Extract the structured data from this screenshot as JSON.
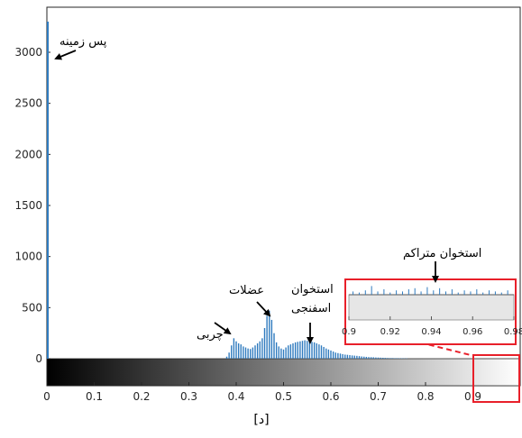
{
  "chart_data": {
    "type": "bar",
    "caption": "[د]",
    "xlim": [
      0,
      1
    ],
    "ylim": [
      -300,
      3300
    ],
    "x_ticks": [
      "0",
      "0.1",
      "0.2",
      "0.3",
      "0.4",
      "0.5",
      "0.6",
      "0.7",
      "0.8",
      "0.9"
    ],
    "y_ticks": [
      "0",
      "500",
      "1000",
      "1500",
      "2000",
      "2500",
      "3000"
    ],
    "bar_color": "#2f7bbf",
    "background_bin": {
      "x": 0.0,
      "y": 3300
    },
    "histogram": [
      {
        "x": 0.38,
        "y": 20
      },
      {
        "x": 0.385,
        "y": 60
      },
      {
        "x": 0.39,
        "y": 130
      },
      {
        "x": 0.395,
        "y": 200
      },
      {
        "x": 0.4,
        "y": 170
      },
      {
        "x": 0.405,
        "y": 150
      },
      {
        "x": 0.41,
        "y": 140
      },
      {
        "x": 0.415,
        "y": 120
      },
      {
        "x": 0.42,
        "y": 110
      },
      {
        "x": 0.425,
        "y": 100
      },
      {
        "x": 0.43,
        "y": 95
      },
      {
        "x": 0.435,
        "y": 110
      },
      {
        "x": 0.44,
        "y": 130
      },
      {
        "x": 0.445,
        "y": 150
      },
      {
        "x": 0.45,
        "y": 170
      },
      {
        "x": 0.455,
        "y": 200
      },
      {
        "x": 0.46,
        "y": 300
      },
      {
        "x": 0.465,
        "y": 420
      },
      {
        "x": 0.47,
        "y": 470
      },
      {
        "x": 0.475,
        "y": 380
      },
      {
        "x": 0.48,
        "y": 250
      },
      {
        "x": 0.485,
        "y": 160
      },
      {
        "x": 0.49,
        "y": 120
      },
      {
        "x": 0.495,
        "y": 100
      },
      {
        "x": 0.5,
        "y": 90
      },
      {
        "x": 0.505,
        "y": 110
      },
      {
        "x": 0.51,
        "y": 130
      },
      {
        "x": 0.515,
        "y": 140
      },
      {
        "x": 0.52,
        "y": 150
      },
      {
        "x": 0.525,
        "y": 160
      },
      {
        "x": 0.53,
        "y": 165
      },
      {
        "x": 0.535,
        "y": 170
      },
      {
        "x": 0.54,
        "y": 175
      },
      {
        "x": 0.545,
        "y": 180
      },
      {
        "x": 0.55,
        "y": 175
      },
      {
        "x": 0.555,
        "y": 170
      },
      {
        "x": 0.56,
        "y": 165
      },
      {
        "x": 0.565,
        "y": 160
      },
      {
        "x": 0.57,
        "y": 150
      },
      {
        "x": 0.575,
        "y": 140
      },
      {
        "x": 0.58,
        "y": 130
      },
      {
        "x": 0.585,
        "y": 115
      },
      {
        "x": 0.59,
        "y": 100
      },
      {
        "x": 0.595,
        "y": 90
      },
      {
        "x": 0.6,
        "y": 80
      },
      {
        "x": 0.605,
        "y": 70
      },
      {
        "x": 0.61,
        "y": 60
      },
      {
        "x": 0.615,
        "y": 55
      },
      {
        "x": 0.62,
        "y": 50
      },
      {
        "x": 0.625,
        "y": 45
      },
      {
        "x": 0.63,
        "y": 40
      },
      {
        "x": 0.635,
        "y": 38
      },
      {
        "x": 0.64,
        "y": 35
      },
      {
        "x": 0.645,
        "y": 32
      },
      {
        "x": 0.65,
        "y": 30
      },
      {
        "x": 0.655,
        "y": 28
      },
      {
        "x": 0.66,
        "y": 25
      },
      {
        "x": 0.665,
        "y": 22
      },
      {
        "x": 0.67,
        "y": 20
      },
      {
        "x": 0.675,
        "y": 18
      },
      {
        "x": 0.68,
        "y": 16
      },
      {
        "x": 0.685,
        "y": 15
      },
      {
        "x": 0.69,
        "y": 14
      },
      {
        "x": 0.695,
        "y": 12
      },
      {
        "x": 0.7,
        "y": 11
      },
      {
        "x": 0.705,
        "y": 10
      },
      {
        "x": 0.71,
        "y": 9
      },
      {
        "x": 0.715,
        "y": 8
      },
      {
        "x": 0.72,
        "y": 7
      },
      {
        "x": 0.725,
        "y": 6
      },
      {
        "x": 0.73,
        "y": 6
      },
      {
        "x": 0.735,
        "y": 5
      },
      {
        "x": 0.74,
        "y": 5
      },
      {
        "x": 0.745,
        "y": 4
      },
      {
        "x": 0.75,
        "y": 4
      },
      {
        "x": 0.755,
        "y": 3
      },
      {
        "x": 0.76,
        "y": 3
      }
    ],
    "colorbar": {
      "from": "#000000",
      "to": "#ffffff",
      "range": [
        0,
        1
      ]
    },
    "annotations": [
      {
        "key": "background",
        "text": "پس زمینه"
      },
      {
        "key": "fat",
        "text": "چربی"
      },
      {
        "key": "muscle",
        "text": "عضلات"
      },
      {
        "key": "spongy_bone_1",
        "text": "استخوان"
      },
      {
        "key": "spongy_bone_2",
        "text": "اسفنجی"
      },
      {
        "key": "dense_bone",
        "text": "استخوان متراکم"
      }
    ],
    "inset": {
      "xlim": [
        0.9,
        0.98
      ],
      "x_ticks": [
        "0.9",
        "0.92",
        "0.94",
        "0.96",
        "0.98"
      ],
      "highlight_color": "#e8202a",
      "histogram": [
        {
          "x": 0.902,
          "y": 3
        },
        {
          "x": 0.905,
          "y": 2
        },
        {
          "x": 0.908,
          "y": 4
        },
        {
          "x": 0.911,
          "y": 8
        },
        {
          "x": 0.914,
          "y": 3
        },
        {
          "x": 0.917,
          "y": 5
        },
        {
          "x": 0.92,
          "y": 2
        },
        {
          "x": 0.923,
          "y": 4
        },
        {
          "x": 0.926,
          "y": 3
        },
        {
          "x": 0.929,
          "y": 5
        },
        {
          "x": 0.932,
          "y": 6
        },
        {
          "x": 0.935,
          "y": 3
        },
        {
          "x": 0.938,
          "y": 7
        },
        {
          "x": 0.941,
          "y": 4
        },
        {
          "x": 0.944,
          "y": 6
        },
        {
          "x": 0.947,
          "y": 3
        },
        {
          "x": 0.95,
          "y": 5
        },
        {
          "x": 0.953,
          "y": 2
        },
        {
          "x": 0.956,
          "y": 4
        },
        {
          "x": 0.959,
          "y": 3
        },
        {
          "x": 0.962,
          "y": 5
        },
        {
          "x": 0.965,
          "y": 2
        },
        {
          "x": 0.968,
          "y": 4
        },
        {
          "x": 0.971,
          "y": 3
        },
        {
          "x": 0.974,
          "y": 2
        },
        {
          "x": 0.977,
          "y": 4
        }
      ]
    }
  }
}
